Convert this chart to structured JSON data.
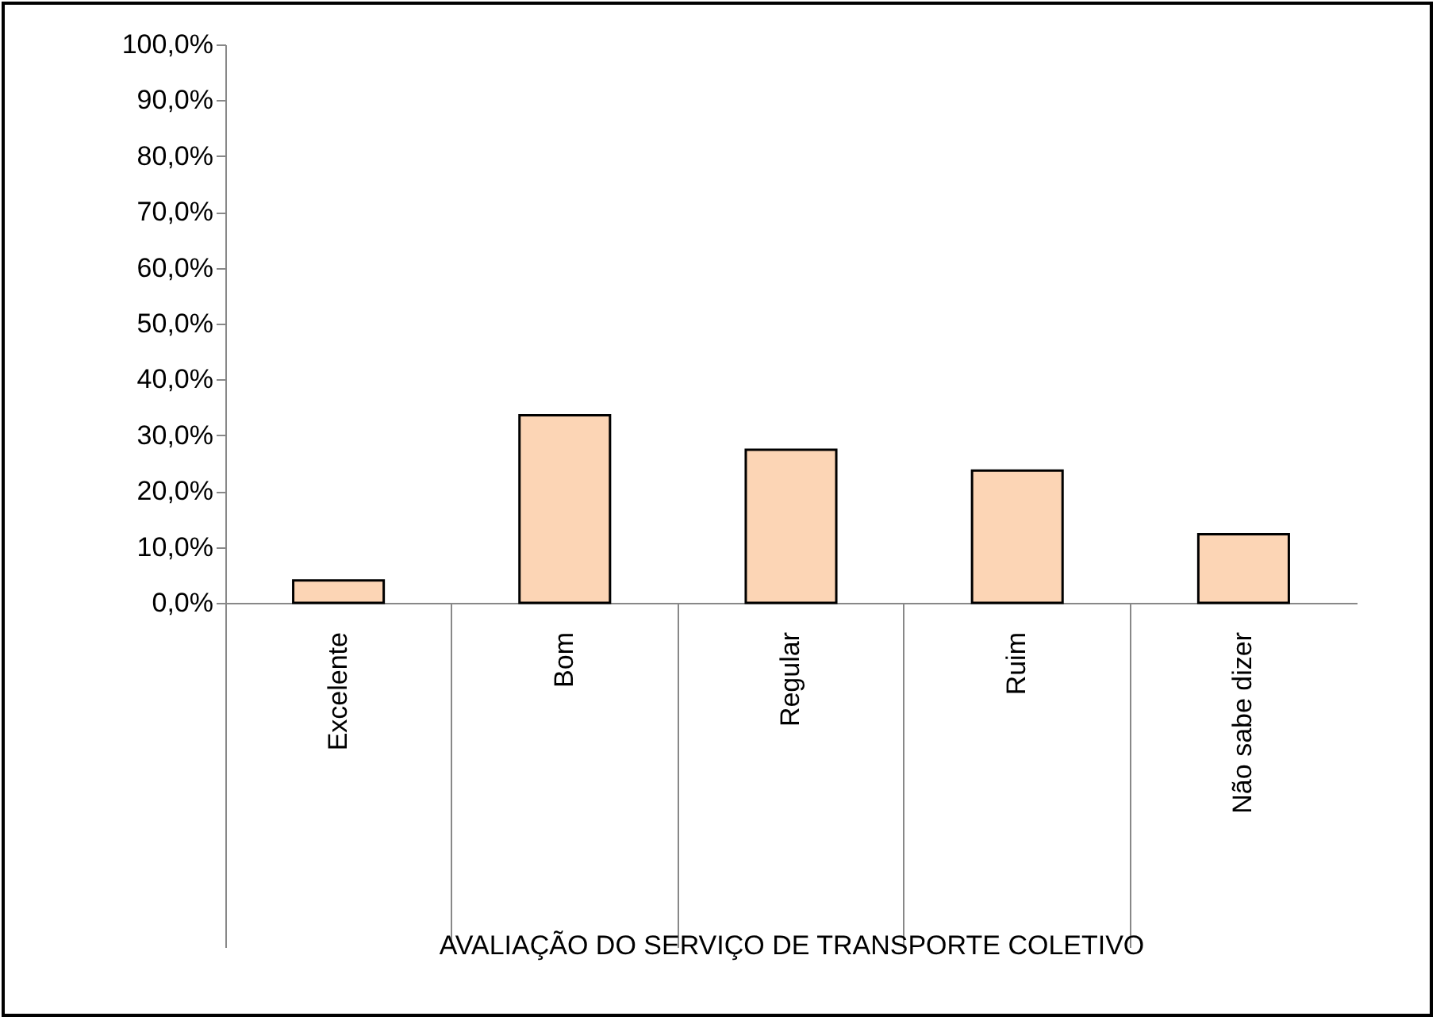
{
  "chart_data": {
    "type": "bar",
    "xlabel": "AVALIAÇÃO DO SERVIÇO DE TRANSPORTE  COLETIVO",
    "categories": [
      "Excelente",
      "Bom",
      "Regular",
      "Ruim",
      "Não sabe dizer"
    ],
    "values": [
      4.0,
      33.6,
      27.4,
      23.7,
      12.3
    ],
    "color": "#fcd5b5",
    "ylim": [
      0,
      100
    ],
    "yticks": [
      {
        "value": 0,
        "label": "0,0%"
      },
      {
        "value": 10,
        "label": "10,0%"
      },
      {
        "value": 20,
        "label": "20,0%"
      },
      {
        "value": 30,
        "label": "30,0%"
      },
      {
        "value": 40,
        "label": "40,0%"
      },
      {
        "value": 50,
        "label": "50,0%"
      },
      {
        "value": 60,
        "label": "60,0%"
      },
      {
        "value": 70,
        "label": "70,0%"
      },
      {
        "value": 80,
        "label": "80,0%"
      },
      {
        "value": 90,
        "label": "90,0%"
      },
      {
        "value": 100,
        "label": "100,0%"
      }
    ],
    "grid": false
  }
}
